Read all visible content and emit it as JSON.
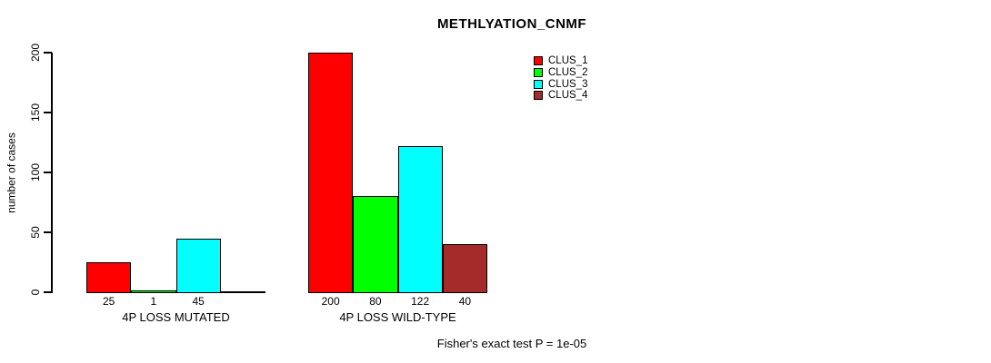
{
  "chart_data": {
    "type": "bar",
    "title": "METHLYATION_CNMF",
    "ylabel": "number of cases",
    "ylim": [
      0,
      200
    ],
    "yticks": [
      0,
      50,
      100,
      150,
      200
    ],
    "grid": false,
    "legend_position": "top-right",
    "categories": [
      "4P LOSS MUTATED",
      "4P LOSS WILD-TYPE"
    ],
    "series": [
      {
        "name": "CLUS_1",
        "color": "#FF0000",
        "values": [
          25,
          200
        ]
      },
      {
        "name": "CLUS_2",
        "color": "#00FF00",
        "values": [
          1,
          80
        ]
      },
      {
        "name": "CLUS_3",
        "color": "#00FFFF",
        "values": [
          45,
          122
        ]
      },
      {
        "name": "CLUS_4",
        "color": "#A52A2A",
        "values": [
          0,
          40
        ]
      }
    ],
    "bar_value_labels": [
      [
        "25",
        "1",
        "45",
        ""
      ],
      [
        "200",
        "80",
        "122",
        "40"
      ]
    ],
    "footer": "Fisher's exact test P = 1e-05"
  }
}
